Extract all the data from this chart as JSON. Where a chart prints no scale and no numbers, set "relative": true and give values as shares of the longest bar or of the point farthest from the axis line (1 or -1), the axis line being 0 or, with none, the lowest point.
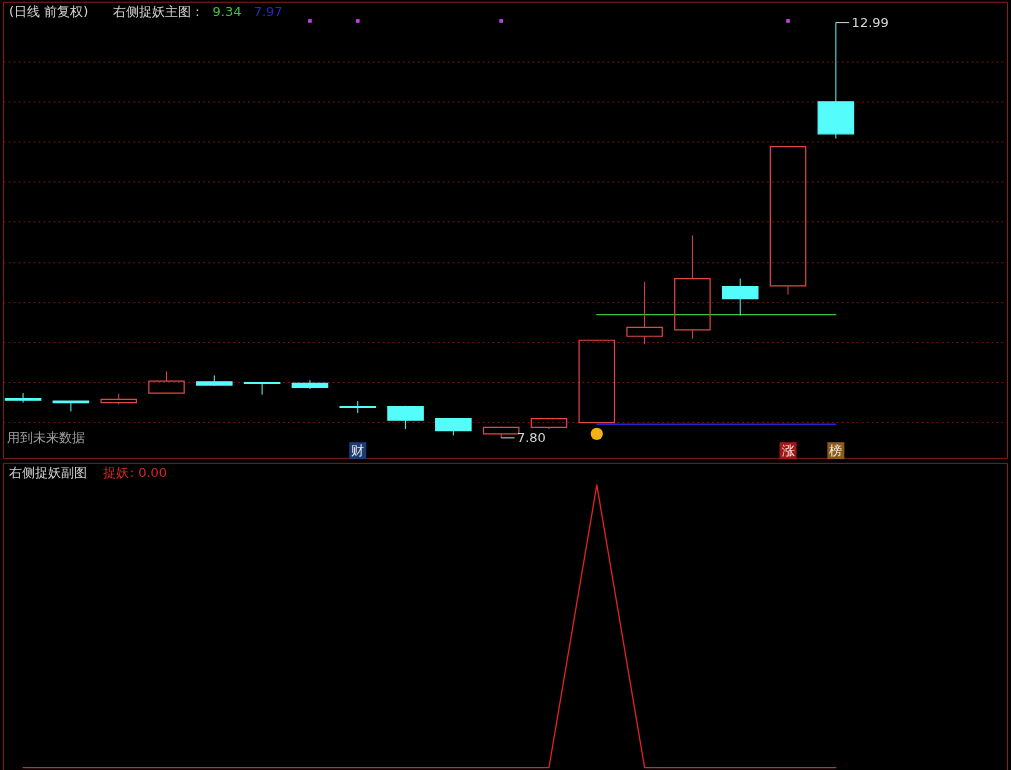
{
  "chart_data": [
    {
      "type": "candlestick",
      "title": "(日线 前复权)",
      "subtitle": "右侧捉妖主图 :",
      "categories": [
        null,
        null,
        null,
        null,
        null,
        null,
        null,
        null,
        null,
        null,
        null,
        null,
        null,
        null,
        null,
        null,
        null,
        null
      ],
      "ohlc": [
        [
          8.29,
          8.36,
          8.24,
          8.27
        ],
        [
          8.26,
          8.26,
          8.13,
          8.24
        ],
        [
          8.24,
          8.35,
          8.22,
          8.28
        ],
        [
          8.36,
          8.63,
          8.36,
          8.51
        ],
        [
          8.5,
          8.58,
          8.45,
          8.46
        ],
        [
          8.49,
          8.49,
          8.34,
          8.48
        ],
        [
          8.48,
          8.52,
          8.41,
          8.43
        ],
        [
          8.19,
          8.26,
          8.11,
          8.18
        ],
        [
          8.19,
          8.2,
          7.91,
          8.02
        ],
        [
          8.04,
          8.04,
          7.83,
          7.89
        ],
        [
          7.85,
          7.94,
          7.8,
          7.93
        ],
        [
          7.93,
          8.04,
          7.91,
          8.04
        ],
        [
          7.99,
          9.02,
          7.99,
          9.02
        ],
        [
          9.07,
          9.75,
          8.97,
          9.18
        ],
        [
          9.15,
          10.33,
          9.04,
          9.79
        ],
        [
          9.69,
          9.79,
          9.33,
          9.54
        ],
        [
          9.7,
          11.44,
          9.59,
          11.44
        ],
        [
          12.0,
          12.99,
          11.54,
          11.6
        ]
      ],
      "colors": [
        "#54fcfc",
        "#54fcfc",
        "#e04848",
        "#e04848",
        "#54fcfc",
        "#54fcfc",
        "#54fcfc",
        "#54fcfc",
        "#54fcfc",
        "#54fcfc",
        "#e04848",
        "#e04848",
        "#e04848",
        "#e04848",
        "#e04848",
        "#54fcfc",
        "#e04848",
        "#54fcfc"
      ],
      "ylim": [
        7.55,
        13.25
      ],
      "yticks": [
        {
          "value": 8,
          "label": null
        },
        {
          "value": 8.5,
          "label": null
        },
        {
          "value": 9,
          "label": null
        },
        {
          "value": 9.5,
          "label": null
        },
        {
          "value": 10,
          "label": null
        },
        {
          "value": 10.5,
          "label": null
        },
        {
          "value": 11,
          "label": null
        },
        {
          "value": 11.5,
          "label": null
        },
        {
          "value": 12,
          "label": null
        },
        {
          "value": 12.5,
          "label": null
        }
      ],
      "grid": "y",
      "tick_labels": false,
      "series": [
        {
          "type": "line",
          "color": "#3cc43c",
          "values": [
            null,
            null,
            null,
            null,
            null,
            null,
            null,
            null,
            null,
            null,
            null,
            null,
            9.34,
            9.34,
            9.34,
            9.34,
            9.34,
            9.34
          ]
        },
        {
          "type": "line",
          "color": "#2626c8",
          "values": [
            null,
            null,
            null,
            null,
            null,
            null,
            null,
            null,
            null,
            null,
            null,
            null,
            7.97,
            7.97,
            7.97,
            7.97,
            7.97,
            7.97
          ]
        },
        {
          "type": "scatter",
          "marker": "square",
          "color": "#c040e0",
          "values": [
            null,
            null,
            null,
            null,
            null,
            null,
            13.01,
            13.01,
            null,
            null,
            13.01,
            null,
            null,
            null,
            null,
            null,
            13.01,
            null
          ]
        },
        {
          "type": "scatter",
          "marker": "circle",
          "color": "#f5b014",
          "values": [
            null,
            null,
            null,
            null,
            null,
            null,
            null,
            null,
            null,
            null,
            null,
            null,
            7.85,
            null,
            null,
            null,
            null,
            null
          ]
        },
        {
          "type": "scatter",
          "marker": "square",
          "colors": [
            null,
            null,
            null,
            null,
            null,
            null,
            null,
            "#1c3c78",
            null,
            null,
            null,
            null,
            null,
            null,
            null,
            null,
            "#a01818",
            "#8a5a1e"
          ],
          "values": [
            null,
            null,
            null,
            null,
            null,
            null,
            null,
            7.64,
            null,
            null,
            null,
            null,
            null,
            null,
            null,
            null,
            7.64,
            7.64
          ],
          "value_labels": [
            null,
            null,
            null,
            null,
            null,
            null,
            null,
            "财",
            null,
            null,
            null,
            null,
            null,
            null,
            null,
            null,
            "涨",
            "榜"
          ]
        }
      ],
      "annotations": [
        "12.99",
        "7.80",
        "9.34",
        "7.97",
        "用到未来数据"
      ]
    },
    {
      "type": "line",
      "title": "右侧捉妖副图",
      "categories": [
        null,
        null,
        null,
        null,
        null,
        null,
        null,
        null,
        null,
        null,
        null,
        null,
        null,
        null,
        null,
        null,
        null,
        null
      ],
      "relative": true,
      "tick_labels": false,
      "legend": "top left",
      "series": [
        {
          "name": "捉妖",
          "color": "#e02424",
          "values": [
            0,
            0,
            0,
            0,
            0,
            0,
            0,
            0,
            0,
            0,
            0,
            0,
            1,
            0,
            0,
            0,
            0,
            0
          ]
        }
      ],
      "annotations": [
        ": 0.00"
      ]
    }
  ]
}
